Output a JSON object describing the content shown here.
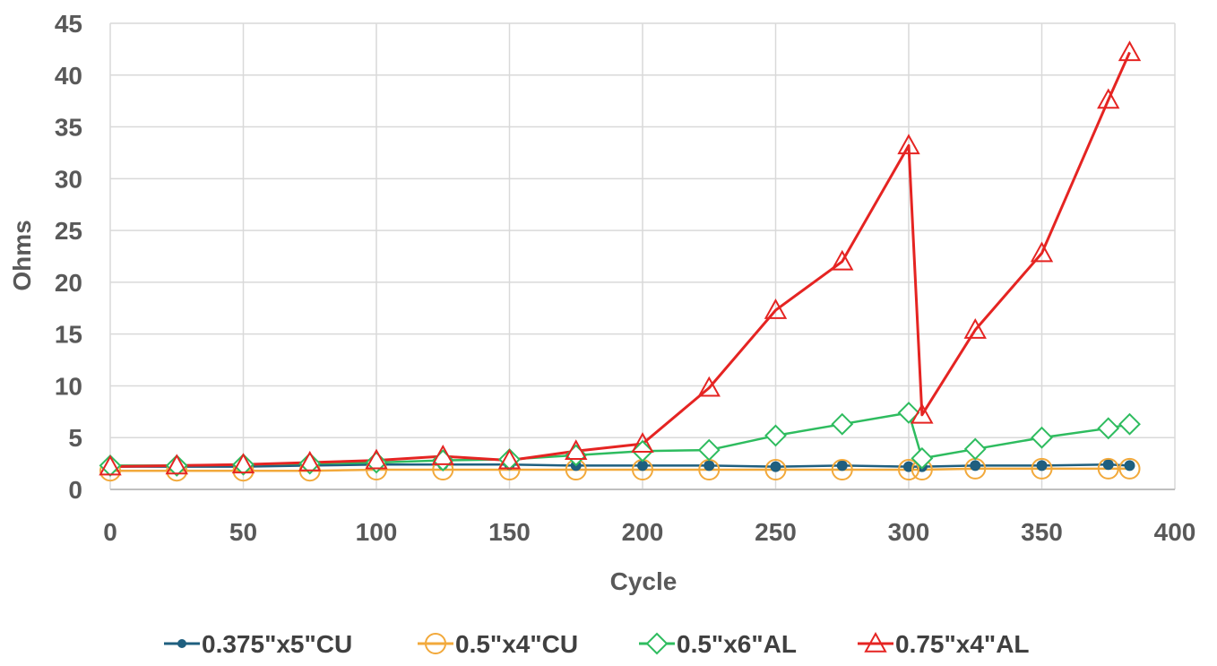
{
  "chart_data": {
    "type": "line",
    "title": "",
    "xlabel": "Cycle",
    "ylabel": "Ohms",
    "xlim": [
      0,
      400
    ],
    "ylim": [
      0,
      45
    ],
    "x_ticks": [
      0,
      50,
      100,
      150,
      200,
      250,
      300,
      350,
      400
    ],
    "y_ticks": [
      0,
      5,
      10,
      15,
      20,
      25,
      30,
      35,
      40,
      45
    ],
    "grid": true,
    "legend_position": "bottom",
    "series": [
      {
        "name": "0.375\"x5\"CU",
        "color": "#1f5f7f",
        "marker": "dot",
        "x": [
          0,
          25,
          50,
          75,
          100,
          125,
          150,
          175,
          200,
          225,
          250,
          275,
          300,
          305,
          325,
          350,
          375,
          383
        ],
        "y": [
          2.2,
          2.2,
          2.2,
          2.3,
          2.4,
          2.4,
          2.4,
          2.3,
          2.3,
          2.3,
          2.2,
          2.3,
          2.2,
          2.2,
          2.3,
          2.3,
          2.4,
          2.3
        ]
      },
      {
        "name": "0.5\"x4\"CU",
        "color": "#f2a93b",
        "marker": "circle",
        "x": [
          0,
          25,
          50,
          75,
          100,
          125,
          150,
          175,
          200,
          225,
          250,
          275,
          300,
          305,
          325,
          350,
          375,
          383
        ],
        "y": [
          1.8,
          1.8,
          1.8,
          1.8,
          1.9,
          1.9,
          1.9,
          1.9,
          1.9,
          1.9,
          1.9,
          1.9,
          1.9,
          1.9,
          2.0,
          2.0,
          2.0,
          2.0
        ]
      },
      {
        "name": "0.5\"x6\"AL",
        "color": "#2ebc5f",
        "marker": "diamond",
        "x": [
          0,
          25,
          50,
          75,
          100,
          125,
          150,
          175,
          200,
          225,
          250,
          275,
          300,
          305,
          325,
          350,
          375,
          383
        ],
        "y": [
          2.3,
          2.3,
          2.4,
          2.5,
          2.6,
          2.8,
          2.9,
          3.3,
          3.7,
          3.8,
          5.2,
          6.3,
          7.4,
          3.0,
          3.9,
          5.0,
          5.9,
          6.3
        ]
      },
      {
        "name": "0.75\"x4\"AL",
        "color": "#e52422",
        "marker": "triangle",
        "x": [
          0,
          25,
          50,
          75,
          100,
          125,
          150,
          175,
          200,
          225,
          250,
          275,
          300,
          305,
          325,
          350,
          375,
          383
        ],
        "y": [
          2.2,
          2.3,
          2.4,
          2.6,
          2.8,
          3.2,
          2.8,
          3.7,
          4.4,
          9.8,
          17.3,
          22.0,
          33.2,
          7.2,
          15.4,
          22.8,
          37.6,
          42.2
        ]
      }
    ]
  }
}
